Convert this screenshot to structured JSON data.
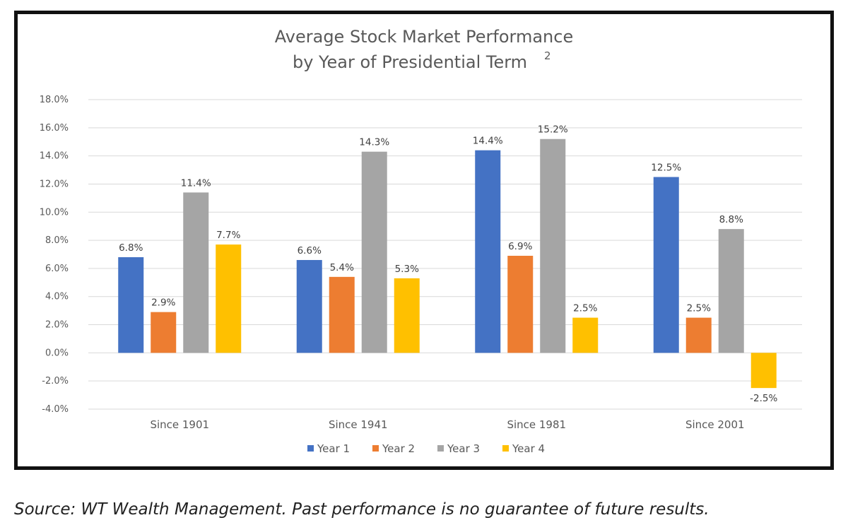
{
  "chart_data": {
    "type": "bar",
    "title_line1": "Average Stock Market Performance",
    "title_line2": "by Year of Presidential Term",
    "title_superscript": "2",
    "categories": [
      "Since 1901",
      "Since 1941",
      "Since 1981",
      "Since 2001"
    ],
    "series": [
      {
        "name": "Year 1",
        "color": "#4472C4",
        "values": [
          6.8,
          6.6,
          14.4,
          12.5
        ]
      },
      {
        "name": "Year 2",
        "color": "#ED7D31",
        "values": [
          2.9,
          5.4,
          6.9,
          2.5
        ]
      },
      {
        "name": "Year 3",
        "color": "#A5A5A5",
        "values": [
          11.4,
          14.3,
          15.2,
          8.8
        ]
      },
      {
        "name": "Year 4",
        "color": "#FFC000",
        "values": [
          7.7,
          5.3,
          2.5,
          -2.5
        ]
      }
    ],
    "value_labels": [
      [
        "6.8%",
        "6.6%",
        "14.4%",
        "12.5%"
      ],
      [
        "2.9%",
        "5.4%",
        "6.9%",
        "2.5%"
      ],
      [
        "11.4%",
        "14.3%",
        "15.2%",
        "8.8%"
      ],
      [
        "7.7%",
        "5.3%",
        "2.5%",
        "-2.5%"
      ]
    ],
    "ylim": [
      -4,
      18
    ],
    "y_ticks": [
      18,
      16,
      14,
      12,
      10,
      8,
      6,
      4,
      2,
      0,
      -2,
      -4
    ],
    "y_tick_labels": [
      "18.0%",
      "16.0%",
      "14.0%",
      "12.0%",
      "10.0%",
      "8.0%",
      "6.0%",
      "4.0%",
      "2.0%",
      "0.0%",
      "-2.0%",
      "-4.0%"
    ],
    "grid": true,
    "legend_position": "bottom",
    "xlabel": "",
    "ylabel": ""
  },
  "footer": {
    "source": "Source: WT Wealth Management. Past performance is no guarantee of future results."
  }
}
